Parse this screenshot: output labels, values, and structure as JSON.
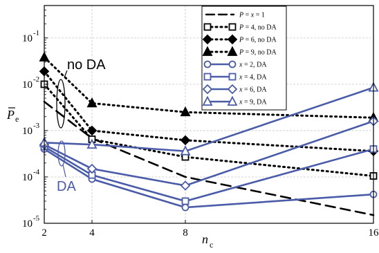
{
  "chart_data": {
    "type": "line",
    "x_ticks": [
      2,
      4,
      8,
      16
    ],
    "y_scale": "log",
    "ylim": [
      1e-05,
      0.5
    ],
    "y_ticks": [
      1e-05,
      0.0001,
      0.001,
      0.01,
      0.1
    ],
    "grid": true,
    "legend_position": "top-right",
    "annotations": [
      {
        "text": "no DA",
        "color": "#000000"
      },
      {
        "text": "DA",
        "color": "#4a5ba8"
      }
    ],
    "series": [
      {
        "label": "P = x = 1",
        "style": "dashed",
        "color": "#000000",
        "marker": "none",
        "x": [
          2,
          4,
          8,
          16
        ],
        "y": [
          0.0042,
          0.00068,
          0.0001,
          1.5e-05
        ]
      },
      {
        "label": "P = 4, no DA",
        "style": "dotted",
        "color": "#000000",
        "marker": "square",
        "x": [
          2,
          4,
          8,
          16
        ],
        "y": [
          0.01,
          0.00065,
          0.00027,
          0.000105
        ]
      },
      {
        "label": "P = 6, no DA",
        "style": "dotted",
        "color": "#000000",
        "marker": "diamond",
        "x": [
          2,
          4,
          8,
          16
        ],
        "y": [
          0.019,
          0.001,
          0.00062,
          0.00036
        ]
      },
      {
        "label": "P = 9, no DA",
        "style": "dotted",
        "color": "#000000",
        "marker": "triangle",
        "x": [
          2,
          4,
          8,
          16
        ],
        "y": [
          0.038,
          0.0039,
          0.0025,
          0.0019
        ]
      },
      {
        "label": "x = 2, DA",
        "style": "solid",
        "color": "#4a5ba8",
        "marker": "circle",
        "x": [
          2,
          4,
          8,
          16
        ],
        "y": [
          0.0004,
          9e-05,
          2.2e-05,
          4.2e-05
        ]
      },
      {
        "label": "x = 4, DA",
        "style": "solid",
        "color": "#4a5ba8",
        "marker": "square",
        "x": [
          2,
          4,
          8,
          16
        ],
        "y": [
          0.00045,
          0.00011,
          3e-05,
          0.0004
        ]
      },
      {
        "label": "x = 6, DA",
        "style": "solid",
        "color": "#4a5ba8",
        "marker": "diamond",
        "x": [
          2,
          4,
          8,
          16
        ],
        "y": [
          0.0005,
          0.00015,
          6.5e-05,
          0.0016
        ]
      },
      {
        "label": "x = 9, DA",
        "style": "solid",
        "color": "#4a5ba8",
        "marker": "triangle",
        "x": [
          2,
          4,
          8,
          16
        ],
        "y": [
          0.00055,
          0.0005,
          0.00036,
          0.0085
        ]
      }
    ]
  },
  "axes": {
    "xlabel_main": "n",
    "xlabel_sub": "c",
    "ylabel_main": "P",
    "ylabel_sub": "e"
  }
}
